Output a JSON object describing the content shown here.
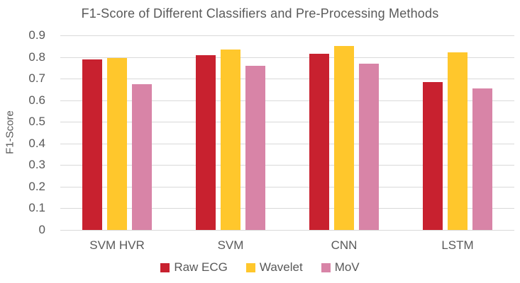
{
  "title": "F1-Score of Different Classifiers and Pre-Processing Methods",
  "colors": {
    "text": "#595959",
    "gridline": "#D9D9D9",
    "axis_line": "#D9D9D9",
    "background": "#FFFFFF",
    "raw_ecg": "#C8212F",
    "wavelet": "#FFC72C",
    "mov": "#D884A7"
  },
  "chart_data": {
    "type": "bar",
    "title": "F1-Score of Different Classifiers and Pre-Processing Methods",
    "xlabel": "",
    "ylabel": "F1-Score",
    "categories": [
      "SVM HVR",
      "SVM",
      "CNN",
      "LSTM"
    ],
    "series": [
      {
        "name": "Raw ECG",
        "color": "#C8212F",
        "values": [
          0.79,
          0.81,
          0.815,
          0.685
        ]
      },
      {
        "name": "Wavelet",
        "color": "#FFC72C",
        "values": [
          0.795,
          0.835,
          0.85,
          0.82
        ]
      },
      {
        "name": "MoV",
        "color": "#D884A7",
        "values": [
          0.675,
          0.76,
          0.77,
          0.655
        ]
      }
    ],
    "ylim": [
      0,
      0.9
    ],
    "yticks": [
      0,
      0.1,
      0.2,
      0.3,
      0.4,
      0.5,
      0.6,
      0.7,
      0.8,
      0.9
    ],
    "grid": true,
    "legend_position": "bottom"
  }
}
